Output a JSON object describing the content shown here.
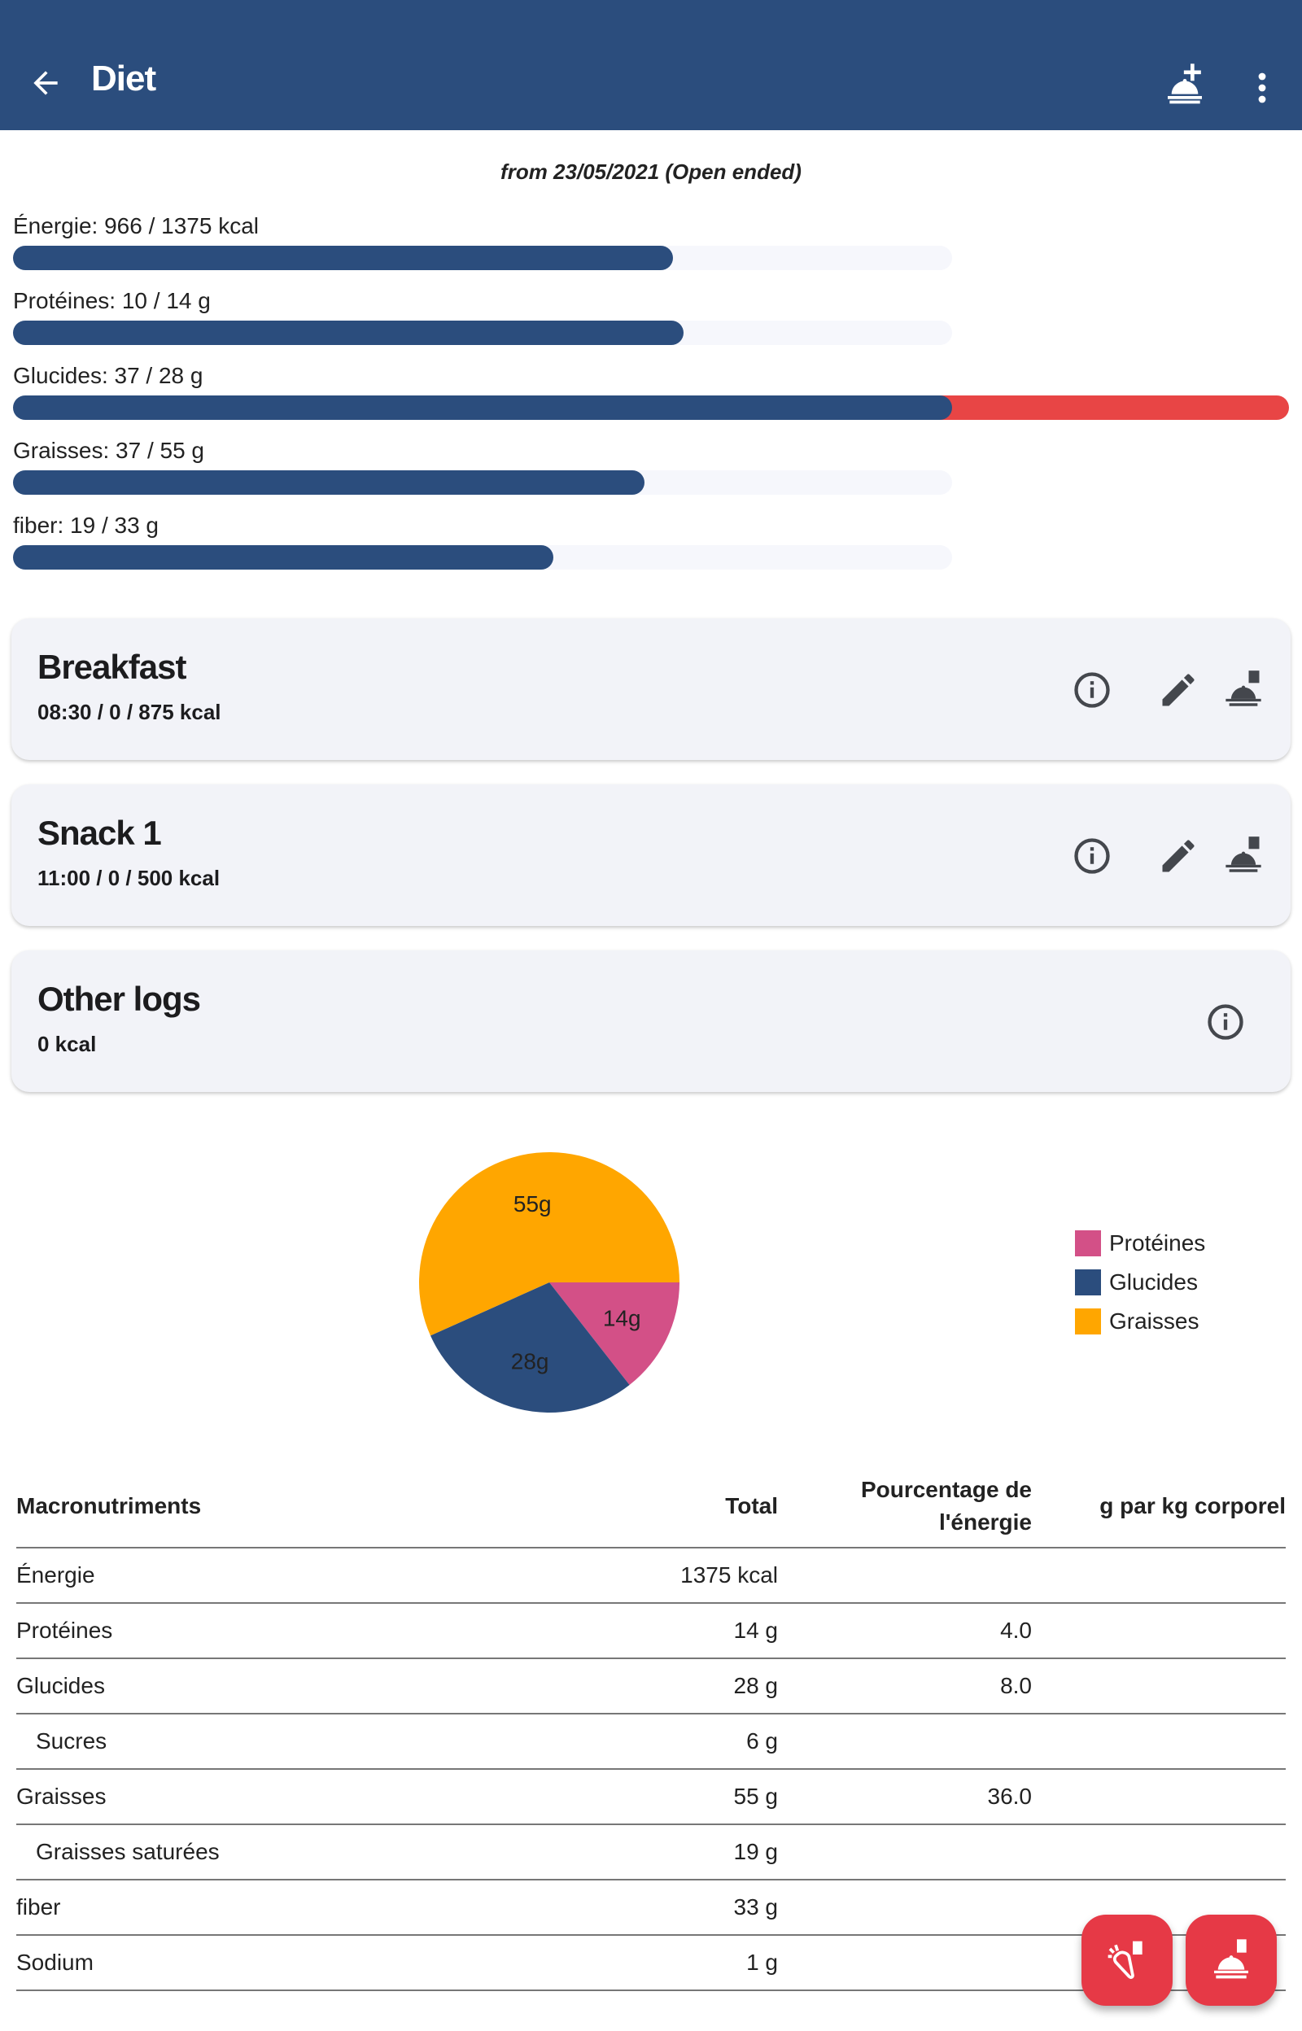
{
  "appbar": {
    "title": "Diet",
    "back_icon": "arrow-left-icon",
    "add_icon": "add-meal-icon",
    "menu_icon": "more-vert-icon"
  },
  "subtitle": "from 23/05/2021 (Open ended)",
  "goals": [
    {
      "label": "Énergie: 966 / 1375 kcal",
      "value": 966,
      "target": 1375
    },
    {
      "label": "Protéines: 10 / 14 g",
      "value": 10,
      "target": 14
    },
    {
      "label": "Glucides: 37 / 28 g",
      "value": 37,
      "target": 28
    },
    {
      "label": "Graisses: 37 / 55 g",
      "value": 37,
      "target": 55
    },
    {
      "label": "fiber: 19 / 33 g",
      "value": 19,
      "target": 33
    }
  ],
  "colors": {
    "primary": "#2b4d7d",
    "over": "#e84545",
    "accent": "#e63946",
    "proteins": "#d35087",
    "carbs": "#2b4d7d",
    "fats": "#ffa600"
  },
  "meals": [
    {
      "name": "Breakfast",
      "meta": "08:30 /  0 / 875 kcal"
    },
    {
      "name": "Snack 1",
      "meta": "11:00 /  0 / 500 kcal"
    },
    {
      "name": "Other logs",
      "meta": " 0 kcal"
    }
  ],
  "chart_data": {
    "type": "pie",
    "slices": [
      {
        "name": "Protéines",
        "value": 14,
        "label": "14g",
        "color": "#d35087"
      },
      {
        "name": "Glucides",
        "value": 28,
        "label": "28g",
        "color": "#2b4d7d"
      },
      {
        "name": "Graisses",
        "value": 55,
        "label": "55g",
        "color": "#ffa600"
      }
    ],
    "legend_placement": "right"
  },
  "table": {
    "headers": [
      "Macronutriments",
      "Total",
      "Pourcentage de l'énergie",
      "g par kg corporel"
    ],
    "rows": [
      {
        "name": "Énergie",
        "total": "1375 kcal",
        "pct": "",
        "gkg": "",
        "indent": false
      },
      {
        "name": "Protéines",
        "total": "14 g",
        "pct": "4.0",
        "gkg": "",
        "indent": false
      },
      {
        "name": "Glucides",
        "total": "28 g",
        "pct": "8.0",
        "gkg": "",
        "indent": false
      },
      {
        "name": "Sucres",
        "total": "6 g",
        "pct": "",
        "gkg": "",
        "indent": true
      },
      {
        "name": "Graisses",
        "total": "55 g",
        "pct": "36.0",
        "gkg": "",
        "indent": false
      },
      {
        "name": "Graisses saturées",
        "total": "19 g",
        "pct": "",
        "gkg": "",
        "indent": true
      },
      {
        "name": "fiber",
        "total": "33 g",
        "pct": "",
        "gkg": "",
        "indent": false
      },
      {
        "name": "Sodium",
        "total": "1 g",
        "pct": "",
        "gkg": "",
        "indent": false
      }
    ]
  },
  "fabs": [
    {
      "icon": "log-ingredient-icon"
    },
    {
      "icon": "log-meal-icon"
    }
  ]
}
